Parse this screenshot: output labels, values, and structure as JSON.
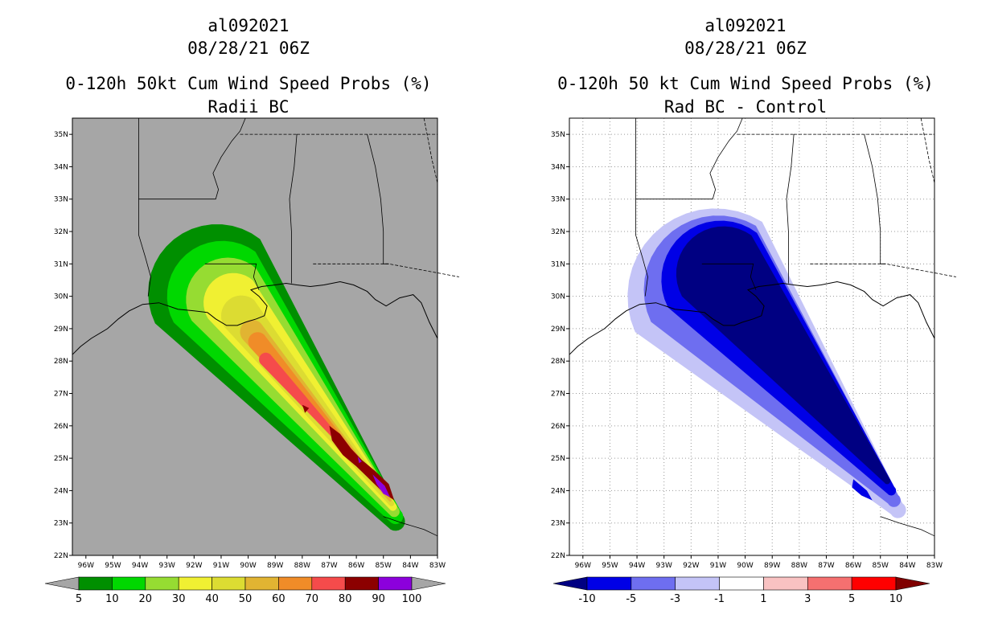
{
  "left": {
    "storm_id": "al092021",
    "datetime": "08/28/21 06Z",
    "title": "0-120h 50kt Cum Wind Speed Probs (%)",
    "subtitle": "Radii BC",
    "background_color": "#a6a6a6",
    "colorbar": {
      "labels": [
        "5",
        "10",
        "20",
        "30",
        "40",
        "50",
        "60",
        "70",
        "80",
        "90",
        "100"
      ],
      "colors": [
        "#008f00",
        "#00d800",
        "#96dc32",
        "#f0f032",
        "#dcdc32",
        "#e1b432",
        "#f08c28",
        "#f54b4b",
        "#8c0000",
        "#8c00dc"
      ],
      "under_color": "#a6a6a6",
      "over_color": "#a6a6a6"
    }
  },
  "right": {
    "storm_id": "al092021",
    "datetime": "08/28/21 06Z",
    "title": "0-120h 50 kt Cum Wind Speed Probs (%)",
    "subtitle": "Rad BC - Control",
    "background_color": "#ffffff",
    "colorbar": {
      "labels": [
        "-10",
        "-5",
        "-3",
        "-1",
        "1",
        "3",
        "5",
        "10"
      ],
      "colors": [
        "#0000e6",
        "#6e6ef0",
        "#c4c4f7",
        "#ffffff",
        "#f9c2c2",
        "#f57070",
        "#ff0000"
      ],
      "under_color": "#000082",
      "over_color": "#800000"
    }
  },
  "map": {
    "lat_labels": [
      "35N",
      "34N",
      "33N",
      "32N",
      "31N",
      "30N",
      "29N",
      "28N",
      "27N",
      "26N",
      "25N",
      "24N",
      "23N",
      "22N"
    ],
    "lon_labels": [
      "96W",
      "95W",
      "94W",
      "93W",
      "92W",
      "91W",
      "90W",
      "89W",
      "88W",
      "87W",
      "86W",
      "85W",
      "84W",
      "83W"
    ]
  }
}
